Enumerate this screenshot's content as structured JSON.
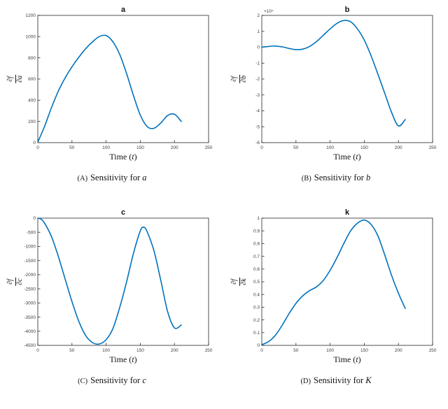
{
  "accent_color": "#0072BD",
  "axis_color": "#262626",
  "chart_data": [
    {
      "type": "line",
      "title": "a",
      "ylabel_num": "∂f",
      "ylabel_den": "∂a",
      "xlabel_pre": "Time (",
      "xlabel_var": "t",
      "xlabel_end": ")",
      "exponent": "",
      "xlim": [
        0,
        250
      ],
      "ylim": [
        0,
        1200
      ],
      "xticks": [
        0,
        50,
        100,
        150,
        200,
        250
      ],
      "yticks": [
        0,
        200,
        400,
        600,
        800,
        1000,
        1200
      ],
      "line_color": "#0072BD",
      "x": [
        0,
        10,
        20,
        30,
        40,
        50,
        60,
        70,
        80,
        90,
        100,
        110,
        120,
        130,
        140,
        150,
        160,
        170,
        180,
        190,
        200,
        210
      ],
      "y": [
        5,
        155,
        330,
        485,
        610,
        715,
        805,
        885,
        950,
        1000,
        1010,
        950,
        830,
        650,
        445,
        260,
        152,
        135,
        185,
        255,
        268,
        200
      ],
      "caption_label": "(A)",
      "caption_text": "Sensitivity for",
      "caption_var": "a"
    },
    {
      "type": "line",
      "title": "b",
      "ylabel_num": "∂f",
      "ylabel_den": "∂b",
      "xlabel_pre": "Time (",
      "xlabel_var": "t",
      "xlabel_end": ")",
      "exponent": "×10⁴",
      "xlim": [
        0,
        250
      ],
      "ylim": [
        -6,
        2
      ],
      "xticks": [
        0,
        50,
        100,
        150,
        200,
        250
      ],
      "yticks": [
        2,
        1,
        0,
        -1,
        -2,
        -3,
        -4,
        -5,
        -6
      ],
      "line_color": "#0072BD",
      "x": [
        0,
        10,
        20,
        30,
        40,
        50,
        60,
        70,
        80,
        90,
        100,
        110,
        120,
        130,
        140,
        150,
        160,
        170,
        180,
        190,
        200,
        210
      ],
      "y": [
        0,
        0.05,
        0.07,
        0.02,
        -0.08,
        -0.15,
        -0.12,
        0.05,
        0.35,
        0.75,
        1.15,
        1.5,
        1.68,
        1.6,
        1.15,
        0.45,
        -0.55,
        -1.7,
        -2.9,
        -4.1,
        -4.95,
        -4.55
      ],
      "caption_label": "(B)",
      "caption_text": "Sensitivity for",
      "caption_var": "b"
    },
    {
      "type": "line",
      "title": "c",
      "ylabel_num": "∂f",
      "ylabel_den": "∂c",
      "xlabel_pre": "Time (",
      "xlabel_var": "t",
      "xlabel_end": ")",
      "exponent": "",
      "xlim": [
        0,
        250
      ],
      "ylim": [
        -4500,
        0
      ],
      "xticks": [
        0,
        50,
        100,
        150,
        200,
        250
      ],
      "yticks": [
        0,
        -500,
        -1000,
        -1500,
        -2000,
        -2500,
        -3000,
        -3500,
        -4000,
        -4500
      ],
      "line_color": "#0072BD",
      "x": [
        0,
        5,
        10,
        20,
        30,
        40,
        50,
        60,
        70,
        80,
        90,
        100,
        110,
        120,
        130,
        140,
        150,
        155,
        160,
        170,
        180,
        190,
        200,
        210
      ],
      "y": [
        0,
        -40,
        -180,
        -650,
        -1350,
        -2150,
        -2950,
        -3650,
        -4150,
        -4400,
        -4450,
        -4300,
        -3900,
        -3150,
        -2250,
        -1250,
        -450,
        -320,
        -480,
        -1150,
        -2200,
        -3300,
        -3880,
        -3780
      ],
      "caption_label": "(C)",
      "caption_text": "Sensitivity for",
      "caption_var": "c"
    },
    {
      "type": "line",
      "title": "k",
      "ylabel_num": "∂f",
      "ylabel_den": "∂k",
      "xlabel_pre": "Time (",
      "xlabel_var": "t",
      "xlabel_end": ")",
      "exponent": "",
      "xlim": [
        0,
        250
      ],
      "ylim": [
        0,
        1
      ],
      "xticks": [
        0,
        50,
        100,
        150,
        200,
        250
      ],
      "yticks": [
        0,
        0.1,
        0.2,
        0.3,
        0.4,
        0.5,
        0.6,
        0.7,
        0.8,
        0.9,
        1
      ],
      "line_color": "#0072BD",
      "x": [
        0,
        10,
        20,
        30,
        40,
        50,
        60,
        70,
        80,
        90,
        100,
        110,
        120,
        130,
        140,
        150,
        160,
        170,
        180,
        190,
        200,
        210
      ],
      "y": [
        0.005,
        0.03,
        0.08,
        0.16,
        0.25,
        0.33,
        0.39,
        0.43,
        0.46,
        0.51,
        0.59,
        0.69,
        0.8,
        0.9,
        0.96,
        0.985,
        0.95,
        0.86,
        0.71,
        0.55,
        0.41,
        0.29
      ],
      "caption_label": "(D)",
      "caption_text": "Sensitivity for",
      "caption_var": "K"
    }
  ]
}
